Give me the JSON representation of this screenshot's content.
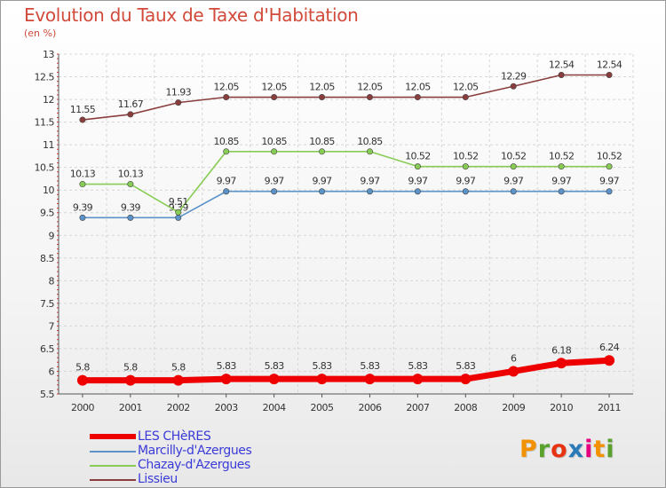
{
  "header": {
    "title": "Evolution du Taux de Taxe d'Habitation",
    "subtitle": "(en %)"
  },
  "logo": {
    "text": "Proxiti",
    "colors": [
      "#f39200",
      "#5aa02c",
      "#e63312",
      "#2a7ab8",
      "#e6007e",
      "#f39200",
      "#5aa02c"
    ]
  },
  "chart_data": {
    "type": "line",
    "title": "Evolution du Taux de Taxe d'Habitation",
    "subtitle": "(en %)",
    "xlabel": "",
    "ylabel": "",
    "x": [
      "2000",
      "2001",
      "2002",
      "2003",
      "2004",
      "2005",
      "2006",
      "2007",
      "2008",
      "2009",
      "2010",
      "2011"
    ],
    "ylim": [
      5.5,
      13
    ],
    "yticks": [
      "5.5",
      "6",
      "6.5",
      "7",
      "7.5",
      "8",
      "8.5",
      "9",
      "9.5",
      "10",
      "10.5",
      "11",
      "11.5",
      "12",
      "12.5",
      "13"
    ],
    "grid": true,
    "legend_position": "bottom-left",
    "series": [
      {
        "name": "LES CHèRES",
        "color": "#ee0000",
        "thick": true,
        "values": [
          5.8,
          5.8,
          5.8,
          5.83,
          5.83,
          5.83,
          5.83,
          5.83,
          5.83,
          6,
          6.18,
          6.24
        ],
        "labels": [
          "5.8",
          "5.8",
          "5.8",
          "5.83",
          "5.83",
          "5.83",
          "5.83",
          "5.83",
          "5.83",
          "6",
          "6.18",
          "6.24"
        ]
      },
      {
        "name": "Marcilly-d'Azergues",
        "color": "#5b93c9",
        "thick": false,
        "values": [
          9.39,
          9.39,
          9.39,
          9.97,
          9.97,
          9.97,
          9.97,
          9.97,
          9.97,
          9.97,
          9.97,
          9.97
        ],
        "labels": [
          "9.39",
          "9.39",
          "9.39",
          "9.97",
          "9.97",
          "9.97",
          "9.97",
          "9.97",
          "9.97",
          "9.97",
          "9.97",
          "9.97"
        ]
      },
      {
        "name": "Chazay-d'Azergues",
        "color": "#88cc55",
        "thick": false,
        "values": [
          10.13,
          10.13,
          9.51,
          10.85,
          10.85,
          10.85,
          10.85,
          10.52,
          10.52,
          10.52,
          10.52,
          10.52
        ],
        "labels": [
          "10.13",
          "10.13",
          "9.51",
          "10.85",
          "10.85",
          "10.85",
          "10.85",
          "10.52",
          "10.52",
          "10.52",
          "10.52",
          "10.52"
        ]
      },
      {
        "name": "Lissieu",
        "color": "#8a3d3d",
        "thick": false,
        "values": [
          11.55,
          11.67,
          11.93,
          12.05,
          12.05,
          12.05,
          12.05,
          12.05,
          12.05,
          12.29,
          12.54,
          12.54
        ],
        "labels": [
          "11.55",
          "11.67",
          "11.93",
          "12.05",
          "12.05",
          "12.05",
          "12.05",
          "12.05",
          "12.05",
          "12.29",
          "12.54",
          "12.54"
        ]
      }
    ]
  }
}
